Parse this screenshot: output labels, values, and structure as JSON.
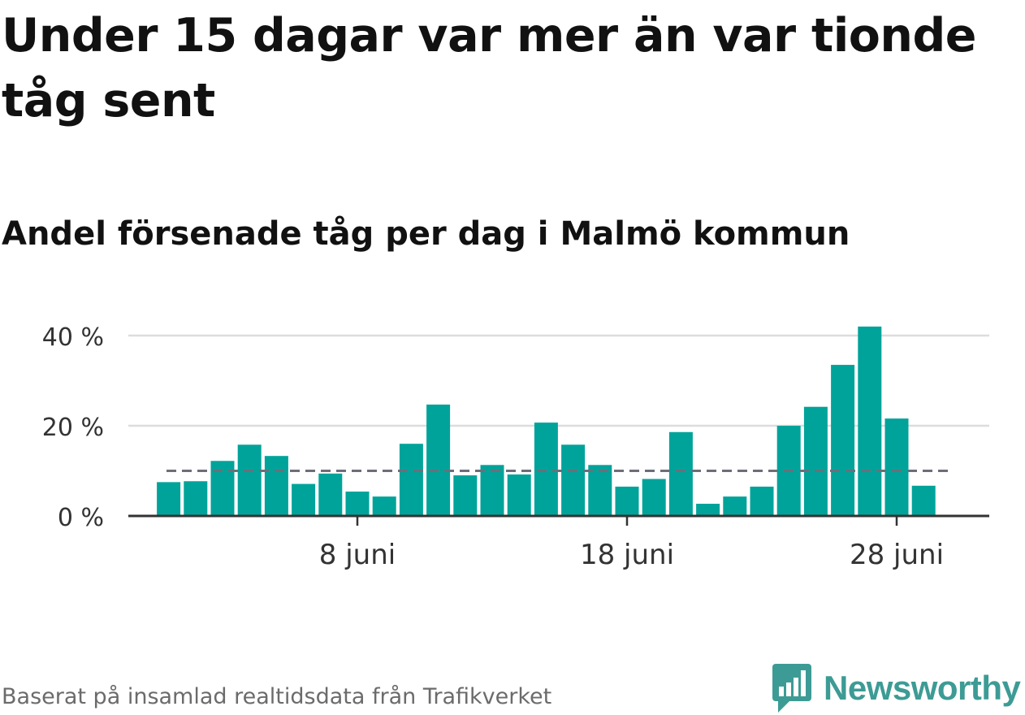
{
  "title": "Under 15 dagar var mer än var tionde tåg sent",
  "subtitle": "Andel försenade tåg per dag i Malmö kommun",
  "source": "Baserat på insamlad realtidsdata från Trafikverket",
  "logo_text": "Newsworthy",
  "colors": {
    "bar": "#00a39a",
    "reference_line": "#6e6e7a",
    "grid": "#dddddd",
    "axis": "#333333",
    "logo": "#3d9b95"
  },
  "chart_data": {
    "type": "bar",
    "x": [
      "1 juni",
      "2 juni",
      "3 juni",
      "4 juni",
      "5 juni",
      "6 juni",
      "7 juni",
      "8 juni",
      "9 juni",
      "10 juni",
      "11 juni",
      "12 juni",
      "13 juni",
      "14 juni",
      "15 juni",
      "16 juni",
      "17 juni",
      "18 juni",
      "19 juni",
      "20 juni",
      "21 juni",
      "22 juni",
      "23 juni",
      "24 juni",
      "25 juni",
      "26 juni",
      "27 juni",
      "28 juni",
      "29 juni"
    ],
    "values": [
      7.5,
      7.7,
      12.2,
      15.8,
      13.3,
      7.1,
      9.4,
      5.4,
      4.3,
      16.0,
      24.7,
      9.0,
      11.3,
      9.2,
      20.7,
      15.8,
      11.3,
      6.5,
      8.2,
      18.6,
      2.7,
      4.3,
      6.5,
      20.0,
      24.2,
      33.5,
      42.0,
      21.6,
      6.7
    ],
    "xticks": [
      "8 juni",
      "18 juni",
      "28 juni"
    ],
    "yticks": [
      "0 %",
      "20 %",
      "40 %"
    ],
    "ytick_values": [
      0,
      20,
      40
    ],
    "ylim": [
      0,
      43
    ],
    "reference_line": 10,
    "grid": true
  }
}
